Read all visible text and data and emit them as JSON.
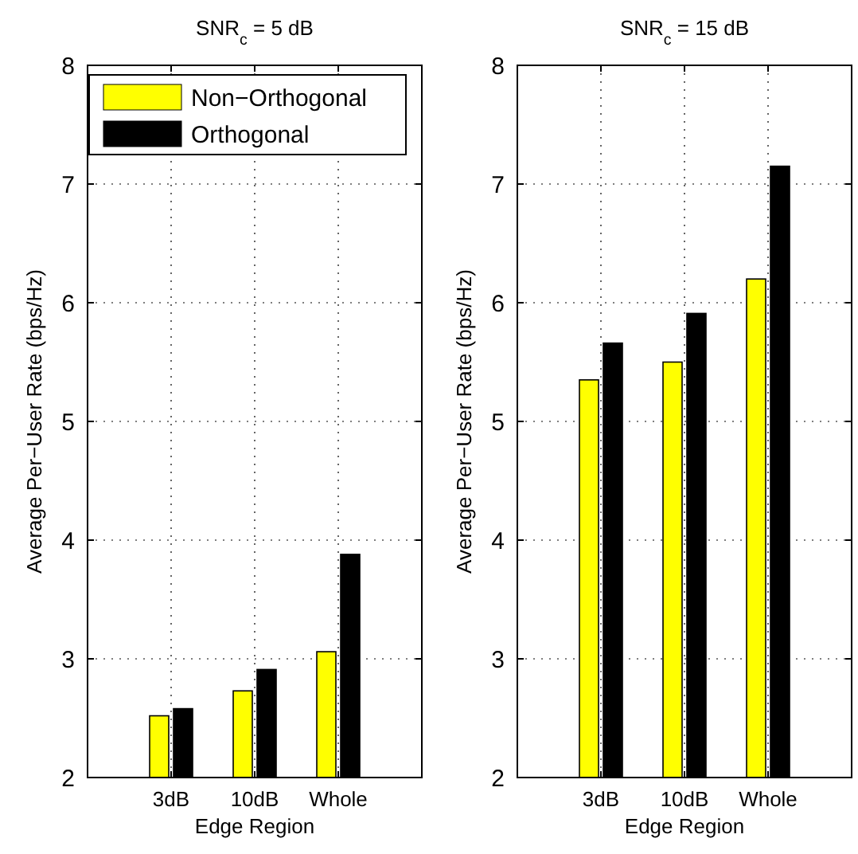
{
  "chart_data": [
    {
      "type": "bar",
      "title": "SNR$_{c}$ = 5 dB",
      "xlabel": "Edge Region",
      "ylabel": "Average Per−User Rate (bps/Hz)",
      "categories": [
        "3dB",
        "10dB",
        "Whole"
      ],
      "series": [
        {
          "name": "Non−Orthogonal",
          "color": "#ffff00",
          "values": [
            2.52,
            2.73,
            3.06
          ]
        },
        {
          "name": "Orthogonal",
          "color": "#000000",
          "values": [
            2.58,
            2.91,
            3.88
          ]
        }
      ],
      "ylim": [
        2,
        8
      ],
      "yticks": [
        2,
        3,
        4,
        5,
        6,
        7,
        8
      ],
      "grid": true,
      "legend": "top left"
    },
    {
      "type": "bar",
      "title": "SNR$_{c}$ = 15 dB",
      "xlabel": "Edge Region",
      "ylabel": "Average Per−User Rate (bps/Hz)",
      "categories": [
        "3dB",
        "10dB",
        "Whole"
      ],
      "series": [
        {
          "color": "#ffff00",
          "values": [
            5.35,
            5.5,
            6.2
          ]
        },
        {
          "color": "#000000",
          "values": [
            5.66,
            5.91,
            7.15
          ]
        }
      ],
      "ylim": [
        2,
        8
      ],
      "yticks": [
        2,
        3,
        4,
        5,
        6,
        7,
        8
      ],
      "grid": true
    }
  ]
}
